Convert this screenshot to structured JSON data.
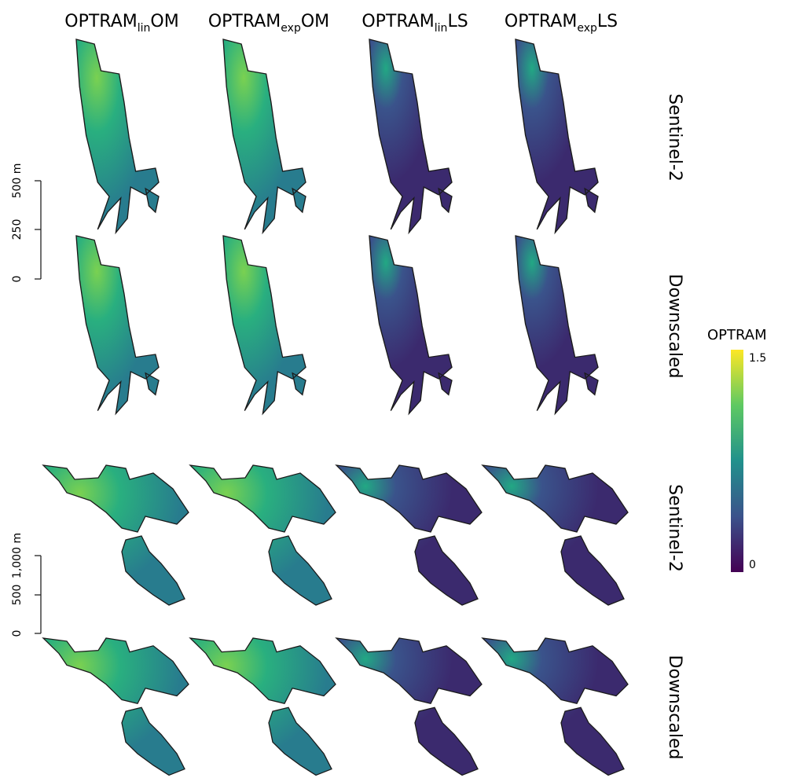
{
  "columns": [
    {
      "main": "OPTRAM",
      "sub": "lin",
      "suffix": "OM"
    },
    {
      "main": "OPTRAM",
      "sub": "exp",
      "suffix": "OM"
    },
    {
      "main": "OPTRAM",
      "sub": "lin",
      "suffix": "LS"
    },
    {
      "main": "OPTRAM",
      "sub": "exp",
      "suffix": "LS"
    }
  ],
  "rows": [
    "Sentinel-2",
    "Downscaled",
    "Sentinel-2",
    "Downscaled"
  ],
  "scale_bars": [
    {
      "ticks": [
        "0",
        "250",
        "500 m"
      ]
    },
    {
      "ticks": [
        "0",
        "500",
        "1,000 m"
      ]
    }
  ],
  "legend": {
    "title": "OPTRAM",
    "labels": [
      "1.5",
      "0"
    ]
  }
}
